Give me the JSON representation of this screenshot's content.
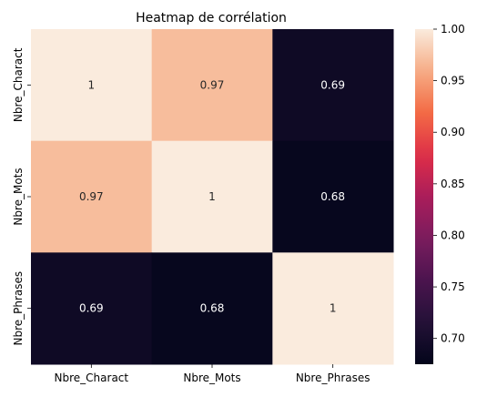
{
  "chart_data": {
    "type": "heatmap",
    "title": "Heatmap de corrélation",
    "x_categories": [
      "Nbre_Charact",
      "Nbre_Mots",
      "Nbre_Phrases"
    ],
    "y_categories": [
      "Nbre_Charact",
      "Nbre_Mots",
      "Nbre_Phrases"
    ],
    "values": [
      [
        1,
        0.97,
        0.69
      ],
      [
        0.97,
        1,
        0.68
      ],
      [
        0.69,
        0.68,
        1
      ]
    ],
    "cell_labels": [
      [
        "1",
        "0.97",
        "0.69"
      ],
      [
        "0.97",
        "1",
        "0.68"
      ],
      [
        "0.69",
        "0.68",
        "1"
      ]
    ],
    "colorbar": {
      "range": [
        0.675,
        1.0
      ],
      "ticks": [
        0.7,
        0.75,
        0.8,
        0.85,
        0.9,
        0.95,
        1.0
      ],
      "tick_labels": [
        "0.70",
        "0.75",
        "0.80",
        "0.85",
        "0.90",
        "0.95",
        "1.00"
      ],
      "colormap": "rocket"
    },
    "grid": false,
    "legend": "colorbar-right"
  }
}
